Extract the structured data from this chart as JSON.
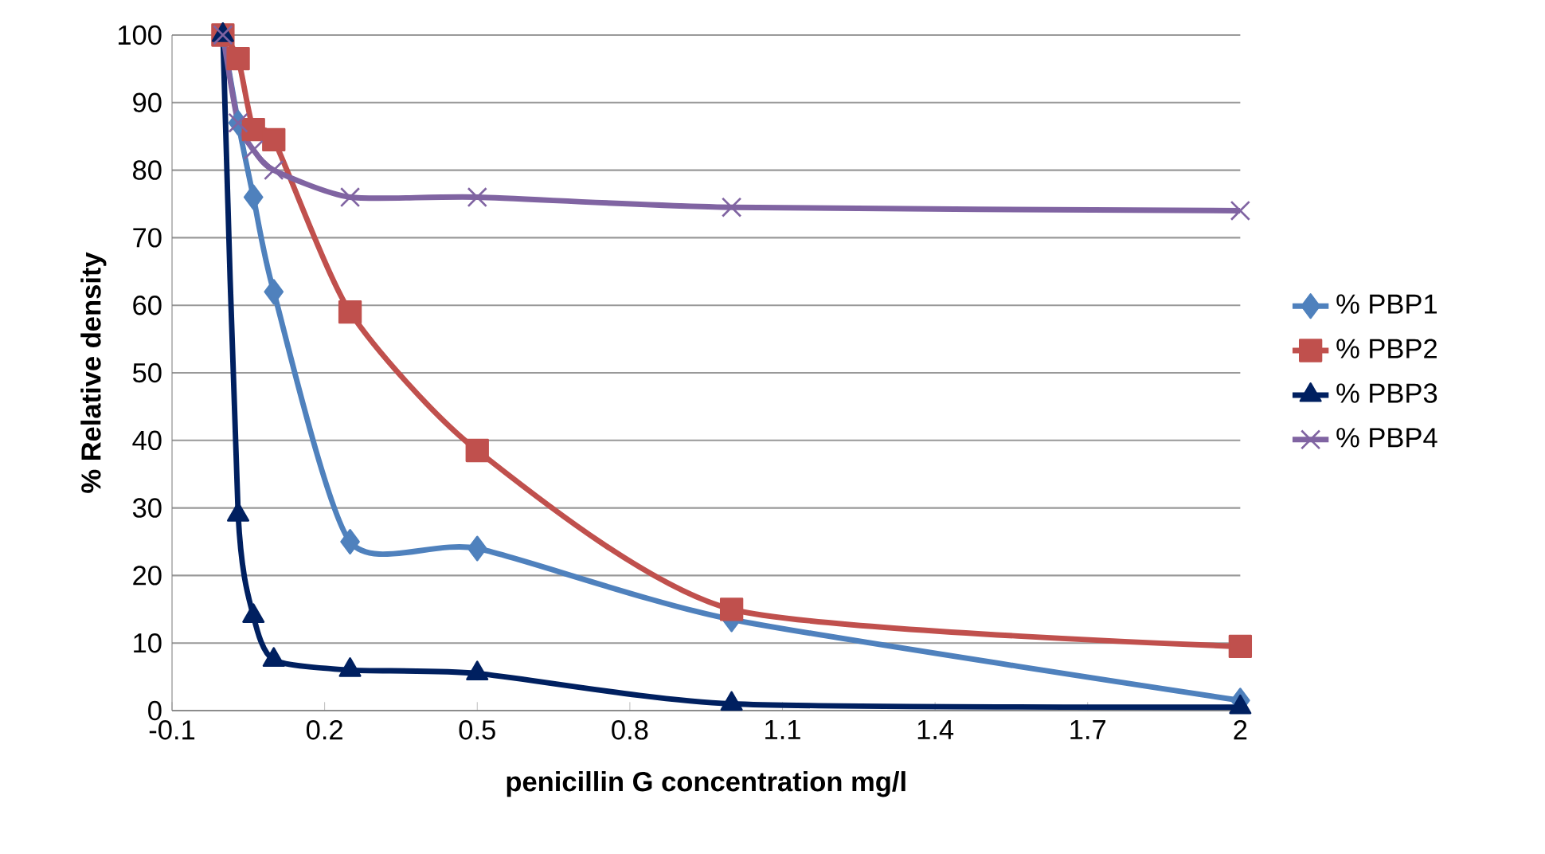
{
  "chart_data": {
    "type": "line",
    "xlabel": "penicillin G concentration mg/l",
    "ylabel": "% Relative density",
    "x": [
      0,
      0.03,
      0.06,
      0.1,
      0.25,
      0.5,
      1,
      2
    ],
    "series": [
      {
        "name": "% PBP1",
        "color": "#4f81bd",
        "marker": "diamond",
        "values": [
          100,
          87,
          76,
          62,
          25,
          24,
          13.5,
          1.5
        ]
      },
      {
        "name": "% PBP2",
        "color": "#c0504d",
        "marker": "square",
        "values": [
          100,
          96.5,
          86,
          84.5,
          59,
          38.5,
          15,
          9.5
        ]
      },
      {
        "name": "% PBP3",
        "color": "#002060",
        "marker": "triangle",
        "values": [
          100,
          29,
          14,
          7.5,
          6,
          5.5,
          1,
          0.5
        ]
      },
      {
        "name": "% PBP4",
        "color": "#8064a2",
        "marker": "cross",
        "values": [
          100,
          87,
          83,
          80,
          76,
          76,
          74.5,
          74
        ]
      }
    ],
    "xlim": [
      -0.1,
      2
    ],
    "xticks": [
      -0.1,
      0.2,
      0.5,
      0.8,
      1.1,
      1.4,
      1.7,
      2
    ],
    "ylim": [
      0,
      100
    ],
    "yticks": [
      0,
      10,
      20,
      30,
      40,
      50,
      60,
      70,
      80,
      90,
      100
    ],
    "grid": "y",
    "legend": "right"
  }
}
